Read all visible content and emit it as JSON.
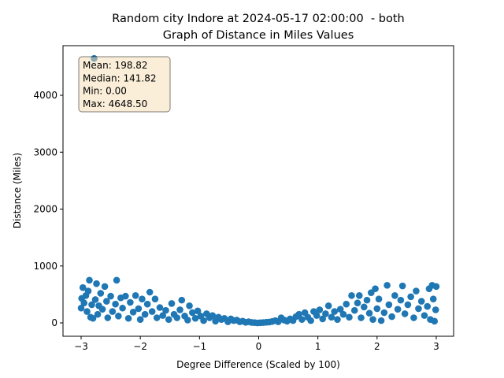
{
  "chart_data": {
    "type": "scatter",
    "title": [
      "Random city Indore at 2024-05-17 02:00:00  - both",
      "Graph of Distance in Miles Values"
    ],
    "xlabel": "Degree Difference (Scaled by 100)",
    "ylabel": "Distance (Miles)",
    "color": "#1f77b4",
    "annotation": [
      "Mean: 198.82",
      "Median: 141.82",
      "Min: 0.00",
      "Max: 4648.50"
    ],
    "xlim": [
      -3.306,
      3.293
    ],
    "ylim": [
      -235,
      4872
    ],
    "xticks": [
      {
        "value": -3,
        "label": "−3"
      },
      {
        "value": -2,
        "label": "−2"
      },
      {
        "value": -1,
        "label": "−1"
      },
      0,
      1,
      2,
      3
    ],
    "yticks": [
      0,
      1000,
      2000,
      3000,
      4000
    ],
    "x": [
      -3.0,
      -2.99,
      -2.97,
      -2.95,
      -2.92,
      -2.9,
      -2.88,
      -2.86,
      -2.84,
      -2.82,
      -2.8,
      -2.78,
      -2.76,
      -2.74,
      -2.72,
      -2.7,
      -2.67,
      -2.64,
      -2.6,
      -2.57,
      -2.55,
      -2.5,
      -2.47,
      -2.42,
      -2.4,
      -2.37,
      -2.33,
      -2.3,
      -2.25,
      -2.2,
      -2.17,
      -2.12,
      -2.08,
      -2.03,
      -2.0,
      -1.97,
      -1.92,
      -1.88,
      -1.84,
      -1.8,
      -1.75,
      -1.72,
      -1.67,
      -1.62,
      -1.57,
      -1.52,
      -1.47,
      -1.43,
      -1.38,
      -1.33,
      -1.3,
      -1.25,
      -1.2,
      -1.17,
      -1.12,
      -1.07,
      -1.03,
      -0.98,
      -0.93,
      -0.88,
      -0.83,
      -0.78,
      -0.73,
      -0.68,
      -0.63,
      -0.58,
      -0.52,
      -0.47,
      -0.42,
      -0.37,
      -0.32,
      -0.27,
      -0.22,
      -0.17,
      -0.12,
      -0.07,
      -0.02,
      0.03,
      0.08,
      0.13,
      0.18,
      0.23,
      0.28,
      0.33,
      0.38,
      0.43,
      0.48,
      0.53,
      0.58,
      0.63,
      0.68,
      0.73,
      0.78,
      0.83,
      0.88,
      0.93,
      0.98,
      1.03,
      1.08,
      1.13,
      1.18,
      1.23,
      1.28,
      1.33,
      1.38,
      1.43,
      1.48,
      1.53,
      1.57,
      1.62,
      1.67,
      1.7,
      1.73,
      1.78,
      1.83,
      1.87,
      1.9,
      1.93,
      1.97,
      2.0,
      2.03,
      2.07,
      2.12,
      2.17,
      2.2,
      2.25,
      2.3,
      2.35,
      2.4,
      2.43,
      2.47,
      2.52,
      2.57,
      2.62,
      2.66,
      2.7,
      2.75,
      2.8,
      2.85,
      2.88,
      2.9,
      2.93,
      2.95,
      2.97,
      3.0,
      2.99
    ],
    "values": [
      260,
      430,
      620,
      350,
      480,
      200,
      560,
      750,
      100,
      320,
      80,
      4648.5,
      410,
      690,
      150,
      300,
      520,
      240,
      640,
      380,
      90,
      470,
      200,
      330,
      750,
      120,
      440,
      260,
      470,
      80,
      360,
      190,
      480,
      250,
      60,
      420,
      150,
      330,
      540,
      200,
      420,
      90,
      270,
      130,
      220,
      60,
      340,
      150,
      90,
      230,
      400,
      120,
      50,
      300,
      180,
      80,
      210,
      120,
      40,
      160,
      90,
      130,
      30,
      100,
      60,
      80,
      20,
      70,
      40,
      50,
      20,
      30,
      10,
      20,
      8,
      5,
      0,
      3,
      6,
      12,
      15,
      25,
      40,
      20,
      90,
      50,
      30,
      70,
      40,
      110,
      150,
      60,
      180,
      100,
      40,
      200,
      130,
      230,
      70,
      160,
      300,
      100,
      200,
      60,
      240,
      150,
      330,
      100,
      480,
      220,
      350,
      480,
      90,
      280,
      400,
      170,
      530,
      60,
      600,
      250,
      420,
      40,
      180,
      660,
      320,
      110,
      480,
      240,
      400,
      650,
      160,
      320,
      460,
      90,
      560,
      250,
      380,
      130,
      290,
      600,
      60,
      660,
      420,
      30,
      640,
      230
    ]
  }
}
